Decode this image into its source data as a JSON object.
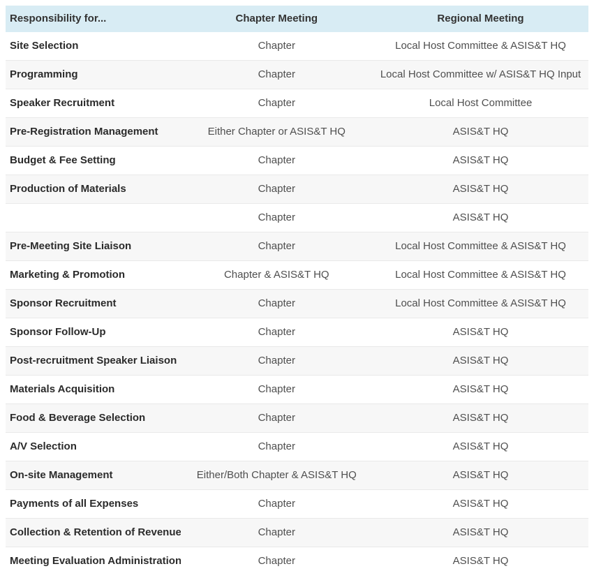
{
  "colors": {
    "header_bg": "#d8ecf4",
    "stripe_bg": "#f7f7f7",
    "divider": "#e9e9e9",
    "header_text": "#333333",
    "row_label_text": "#2b2b2b",
    "cell_text": "#4f4f4f"
  },
  "table": {
    "headers": [
      "Responsibility for...",
      "Chapter Meeting",
      "Regional Meeting"
    ],
    "rows": [
      [
        "Site Selection",
        "Chapter",
        "Local Host Committee & ASIS&T HQ"
      ],
      [
        "Programming",
        "Chapter",
        "Local Host Committee w/ ASIS&T HQ Input"
      ],
      [
        "Speaker Recruitment",
        "Chapter",
        "Local Host Committee"
      ],
      [
        "Pre-Registration Management",
        "Either Chapter or ASIS&T HQ",
        "ASIS&T HQ"
      ],
      [
        "Budget & Fee Setting",
        "Chapter",
        "ASIS&T HQ"
      ],
      [
        "Production of Materials",
        "Chapter",
        "ASIS&T HQ"
      ],
      [
        "",
        "Chapter",
        "ASIS&T HQ"
      ],
      [
        "Pre-Meeting Site Liaison",
        "Chapter",
        "Local Host Committee & ASIS&T HQ"
      ],
      [
        "Marketing & Promotion",
        "Chapter & ASIS&T HQ",
        "Local Host Committee & ASIS&T HQ"
      ],
      [
        "Sponsor Recruitment",
        "Chapter",
        "Local Host Committee & ASIS&T HQ"
      ],
      [
        "Sponsor Follow-Up",
        "Chapter",
        "ASIS&T HQ"
      ],
      [
        "Post-recruitment Speaker Liaison",
        "Chapter",
        "ASIS&T HQ"
      ],
      [
        "Materials Acquisition",
        "Chapter",
        "ASIS&T HQ"
      ],
      [
        "Food & Beverage Selection",
        "Chapter",
        "ASIS&T HQ"
      ],
      [
        "A/V Selection",
        "Chapter",
        "ASIS&T HQ"
      ],
      [
        "On-site Management",
        "Either/Both Chapter & ASIS&T HQ",
        "ASIS&T HQ"
      ],
      [
        "Payments of all Expenses",
        "Chapter",
        "ASIS&T HQ"
      ],
      [
        "Collection & Retention of Revenue",
        "Chapter",
        "ASIS&T HQ"
      ],
      [
        "Meeting Evaluation Administration",
        "Chapter",
        "ASIS&T HQ"
      ]
    ]
  }
}
